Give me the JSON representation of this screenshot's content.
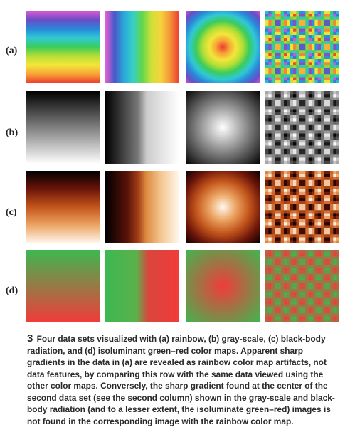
{
  "figure": {
    "row_labels": [
      "(a)",
      "(b)",
      "(c)",
      "(d)"
    ],
    "caption_number": "3",
    "caption_text": "Four data sets visualized with (a) rainbow, (b) gray-scale, (c) black-body radiation, and (d) isoluminant green–red color maps. Apparent sharp gradients in the data in (a) are revealed as rainbow color map artifacts, not data features, by comparing this row with the same data viewed using the other color maps. Conversely, the sharp gradient found at the center of the second data set (see the second column) shown in the gray-scale and black-body radiation (and to a lesser extent, the isoluminate green–red) images is not found in the corresponding image with the rainbow color map.",
    "color_maps": {
      "rainbow": [
        "#d95bd3",
        "#6b4cc4",
        "#2b86d9",
        "#2fc9d6",
        "#3bcc5a",
        "#b6de35",
        "#f3e63a",
        "#f7a236",
        "#ee3a2e"
      ],
      "grayscale": [
        "#000000",
        "#ffffff"
      ],
      "blackbody": [
        "#000000",
        "#6b1409",
        "#c4561c",
        "#eba564",
        "#fff8ee"
      ],
      "greenred": [
        "#3db850",
        "#f23b3b"
      ]
    }
  }
}
